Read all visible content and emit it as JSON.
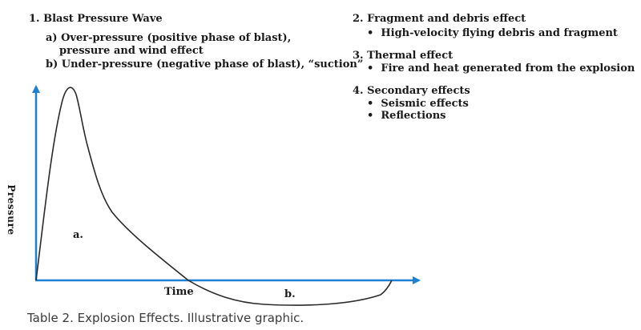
{
  "legend_left": {
    "item1": "1.  Blast Pressure Wave",
    "item1a_line1": "a) Over-pressure (positive phase of blast),",
    "item1a_line2": "pressure and wind effect",
    "item1b": "b) Under-pressure (negative phase of blast), “suction”"
  },
  "legend_right": {
    "item2": "2.  Fragment and debris effect",
    "item2_bullet": "High-velocity flying debris and fragment",
    "item3": "3.  Thermal effect",
    "item3_bullet": "Fire and heat generated from the explosion",
    "item4": "4.  Secondary effects",
    "item4_bullet1": "Seismic effects",
    "item4_bullet2": "Reflections"
  },
  "bullet_char": "•",
  "graph": {
    "y_axis_label": "Pressure",
    "x_axis_label": "Time",
    "region_a_label": "a.",
    "region_b_label": "b."
  },
  "caption": "Table 2. Explosion Effects. Illustrative graphic.",
  "colors": {
    "axis": "#1f7fd1",
    "curve": "#2a2a2a",
    "text": "#1a1a1a",
    "caption": "#3a3a3a"
  }
}
